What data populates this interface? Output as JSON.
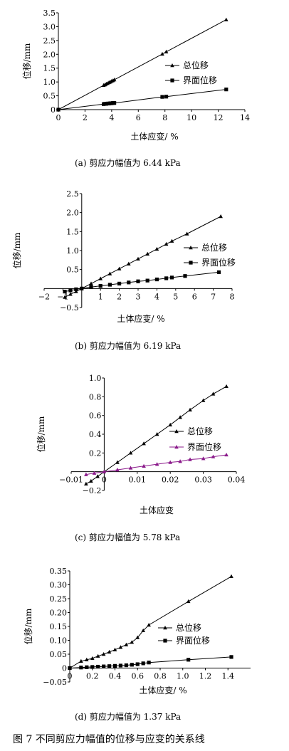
{
  "figure": {
    "caption": "图 7   不同剪应力幅值的位移与应变的关系线"
  },
  "chart_data": [
    {
      "id": "a",
      "type": "scatter",
      "caption": "(a)  剪应力幅值为 6.44 kPa",
      "xlabel": "土体应变/ %",
      "ylabel": "位移/mm",
      "xlim": [
        0,
        14
      ],
      "ylim": [
        0,
        3.5
      ],
      "xticks": [
        0,
        2,
        4,
        6,
        8,
        10,
        12,
        14
      ],
      "yticks": [
        0,
        0.5,
        1.0,
        1.5,
        2.0,
        2.5,
        3.0,
        3.5
      ],
      "ytick_labels": [
        "0",
        "0.5",
        "1.0",
        "1.5",
        "2.0",
        "2.5",
        "3.0",
        "3.5"
      ],
      "grid": false,
      "legend": "right-middle",
      "series": [
        {
          "name": "总位移",
          "marker": "triangle",
          "color": "#000000",
          "x": [
            0,
            3.4,
            3.5,
            3.6,
            3.7,
            3.8,
            3.9,
            4.0,
            4.1,
            4.2,
            7.8,
            8.1,
            12.6
          ],
          "y": [
            0,
            0.88,
            0.9,
            0.93,
            0.95,
            0.98,
            1.0,
            1.03,
            1.05,
            1.08,
            2.01,
            2.09,
            3.25
          ]
        },
        {
          "name": "界面位移",
          "marker": "square",
          "color": "#000000",
          "x": [
            0,
            3.4,
            3.5,
            3.6,
            3.7,
            3.8,
            3.9,
            4.0,
            4.1,
            4.2,
            7.8,
            8.1,
            12.6
          ],
          "y": [
            0,
            0.2,
            0.21,
            0.21,
            0.22,
            0.22,
            0.23,
            0.23,
            0.24,
            0.24,
            0.46,
            0.47,
            0.73
          ]
        }
      ]
    },
    {
      "id": "b",
      "type": "scatter",
      "caption": "(b)  剪应力幅值为 6.19 kPa",
      "xlabel": "土体应变/ %",
      "ylabel": "位移/mm",
      "xlim": [
        -2,
        8
      ],
      "ylim": [
        -0.5,
        2.5
      ],
      "xticks": [
        -2,
        -1,
        1,
        2,
        3,
        4,
        5,
        6,
        7,
        8
      ],
      "xtick_labels": [
        "−2",
        "−1",
        "1",
        "2",
        "3",
        "4",
        "5",
        "6",
        "7",
        "8"
      ],
      "yticks": [
        -0.5,
        0.5,
        1.0,
        1.5,
        2.0,
        2.5
      ],
      "ytick_labels": [
        "−0.5",
        "0.5",
        "1.0",
        "1.5",
        "2.0",
        "2.5"
      ],
      "grid": false,
      "legend": "right-middle",
      "series": [
        {
          "name": "总位移",
          "marker": "triangle",
          "color": "#000000",
          "x": [
            -0.9,
            -0.6,
            -0.3,
            0,
            0.5,
            1.0,
            1.5,
            2.0,
            2.5,
            3.0,
            3.5,
            4.0,
            4.5,
            4.8,
            5.6,
            7.4
          ],
          "y": [
            -0.23,
            -0.15,
            -0.08,
            0,
            0.13,
            0.26,
            0.39,
            0.52,
            0.65,
            0.78,
            0.91,
            1.04,
            1.17,
            1.25,
            1.44,
            1.9
          ]
        },
        {
          "name": "界面位移",
          "marker": "square",
          "color": "#000000",
          "x": [
            -0.9,
            -0.6,
            -0.3,
            0,
            0.5,
            1.0,
            1.5,
            2.0,
            2.5,
            3.0,
            3.5,
            4.0,
            4.5,
            4.8,
            5.5,
            7.3
          ],
          "y": [
            -0.08,
            -0.05,
            -0.02,
            0,
            0.04,
            0.07,
            0.1,
            0.13,
            0.16,
            0.19,
            0.21,
            0.24,
            0.27,
            0.29,
            0.33,
            0.43
          ]
        }
      ]
    },
    {
      "id": "c",
      "type": "scatter",
      "caption": "(c)  剪应力幅值为 5.78 kPa",
      "xlabel": "土体应变",
      "ylabel": "位移/mm",
      "xlim": [
        -0.01,
        0.04
      ],
      "ylim": [
        -0.2,
        1.0
      ],
      "xticks": [
        -0.01,
        0,
        0.01,
        0.02,
        0.03,
        0.04
      ],
      "xtick_labels": [
        "−0.01",
        "0",
        "0.01",
        "0.02",
        "0.03",
        "0.04"
      ],
      "yticks": [
        -0.2,
        0.2,
        0.4,
        0.6,
        0.8,
        1.0
      ],
      "ytick_labels": [
        "−0.2",
        "0.2",
        "0.4",
        "0.6",
        "0.8",
        "1.0"
      ],
      "grid": false,
      "legend": "right-middle",
      "series": [
        {
          "name": "总位移",
          "marker": "triangle",
          "color": "#000000",
          "x": [
            -0.0055,
            -0.004,
            -0.002,
            0,
            0.004,
            0.008,
            0.012,
            0.016,
            0.02,
            0.023,
            0.026,
            0.03,
            0.033,
            0.037
          ],
          "y": [
            -0.13,
            -0.1,
            -0.05,
            0,
            0.1,
            0.2,
            0.3,
            0.4,
            0.5,
            0.58,
            0.66,
            0.76,
            0.83,
            0.91
          ]
        },
        {
          "name": "界面位移",
          "marker": "triangle",
          "color": "#8b1a8b",
          "x": [
            -0.0055,
            -0.003,
            0,
            0.004,
            0.008,
            0.012,
            0.016,
            0.02,
            0.023,
            0.026,
            0.03,
            0.033,
            0.037
          ],
          "y": [
            -0.03,
            -0.015,
            0,
            0.02,
            0.04,
            0.06,
            0.08,
            0.1,
            0.11,
            0.13,
            0.14,
            0.16,
            0.18
          ]
        }
      ]
    },
    {
      "id": "d",
      "type": "scatter",
      "caption": "(d)  剪应力幅值为 1.37 kPa",
      "xlabel": "土体应变/ %",
      "ylabel": "位移/mm",
      "xlim": [
        0,
        1.6
      ],
      "ylim": [
        -0.05,
        0.35
      ],
      "xticks": [
        0,
        0.2,
        0.4,
        0.6,
        0.8,
        1.0,
        1.2,
        1.4
      ],
      "xtick_labels": [
        "0",
        "0.2",
        "0.4",
        "0.6",
        "0.8",
        "1.0",
        "1.2",
        "1.4"
      ],
      "yticks": [
        -0.05,
        0,
        0.05,
        0.1,
        0.15,
        0.2,
        0.25,
        0.3,
        0.35
      ],
      "ytick_labels": [
        "−0.05",
        "0",
        "0.05",
        "0.10",
        "0.15",
        "0.20",
        "0.25",
        "0.30",
        "0.35"
      ],
      "grid": false,
      "legend": "right-middle",
      "series": [
        {
          "name": "总位移",
          "marker": "triangle",
          "color": "#000000",
          "x": [
            0,
            0.1,
            0.15,
            0.2,
            0.25,
            0.3,
            0.35,
            0.4,
            0.45,
            0.5,
            0.55,
            0.6,
            0.65,
            0.7,
            1.05,
            1.43
          ],
          "y": [
            0,
            0.025,
            0.03,
            0.035,
            0.043,
            0.05,
            0.058,
            0.066,
            0.075,
            0.084,
            0.093,
            0.11,
            0.135,
            0.155,
            0.24,
            0.33
          ]
        },
        {
          "name": "界面位移",
          "marker": "square",
          "color": "#000000",
          "x": [
            0,
            0.1,
            0.15,
            0.2,
            0.25,
            0.3,
            0.35,
            0.4,
            0.45,
            0.5,
            0.55,
            0.6,
            0.65,
            0.7,
            1.05,
            1.43
          ],
          "y": [
            0,
            0.002,
            0.003,
            0.004,
            0.005,
            0.006,
            0.007,
            0.008,
            0.009,
            0.01,
            0.012,
            0.014,
            0.017,
            0.02,
            0.03,
            0.04
          ]
        }
      ]
    }
  ]
}
